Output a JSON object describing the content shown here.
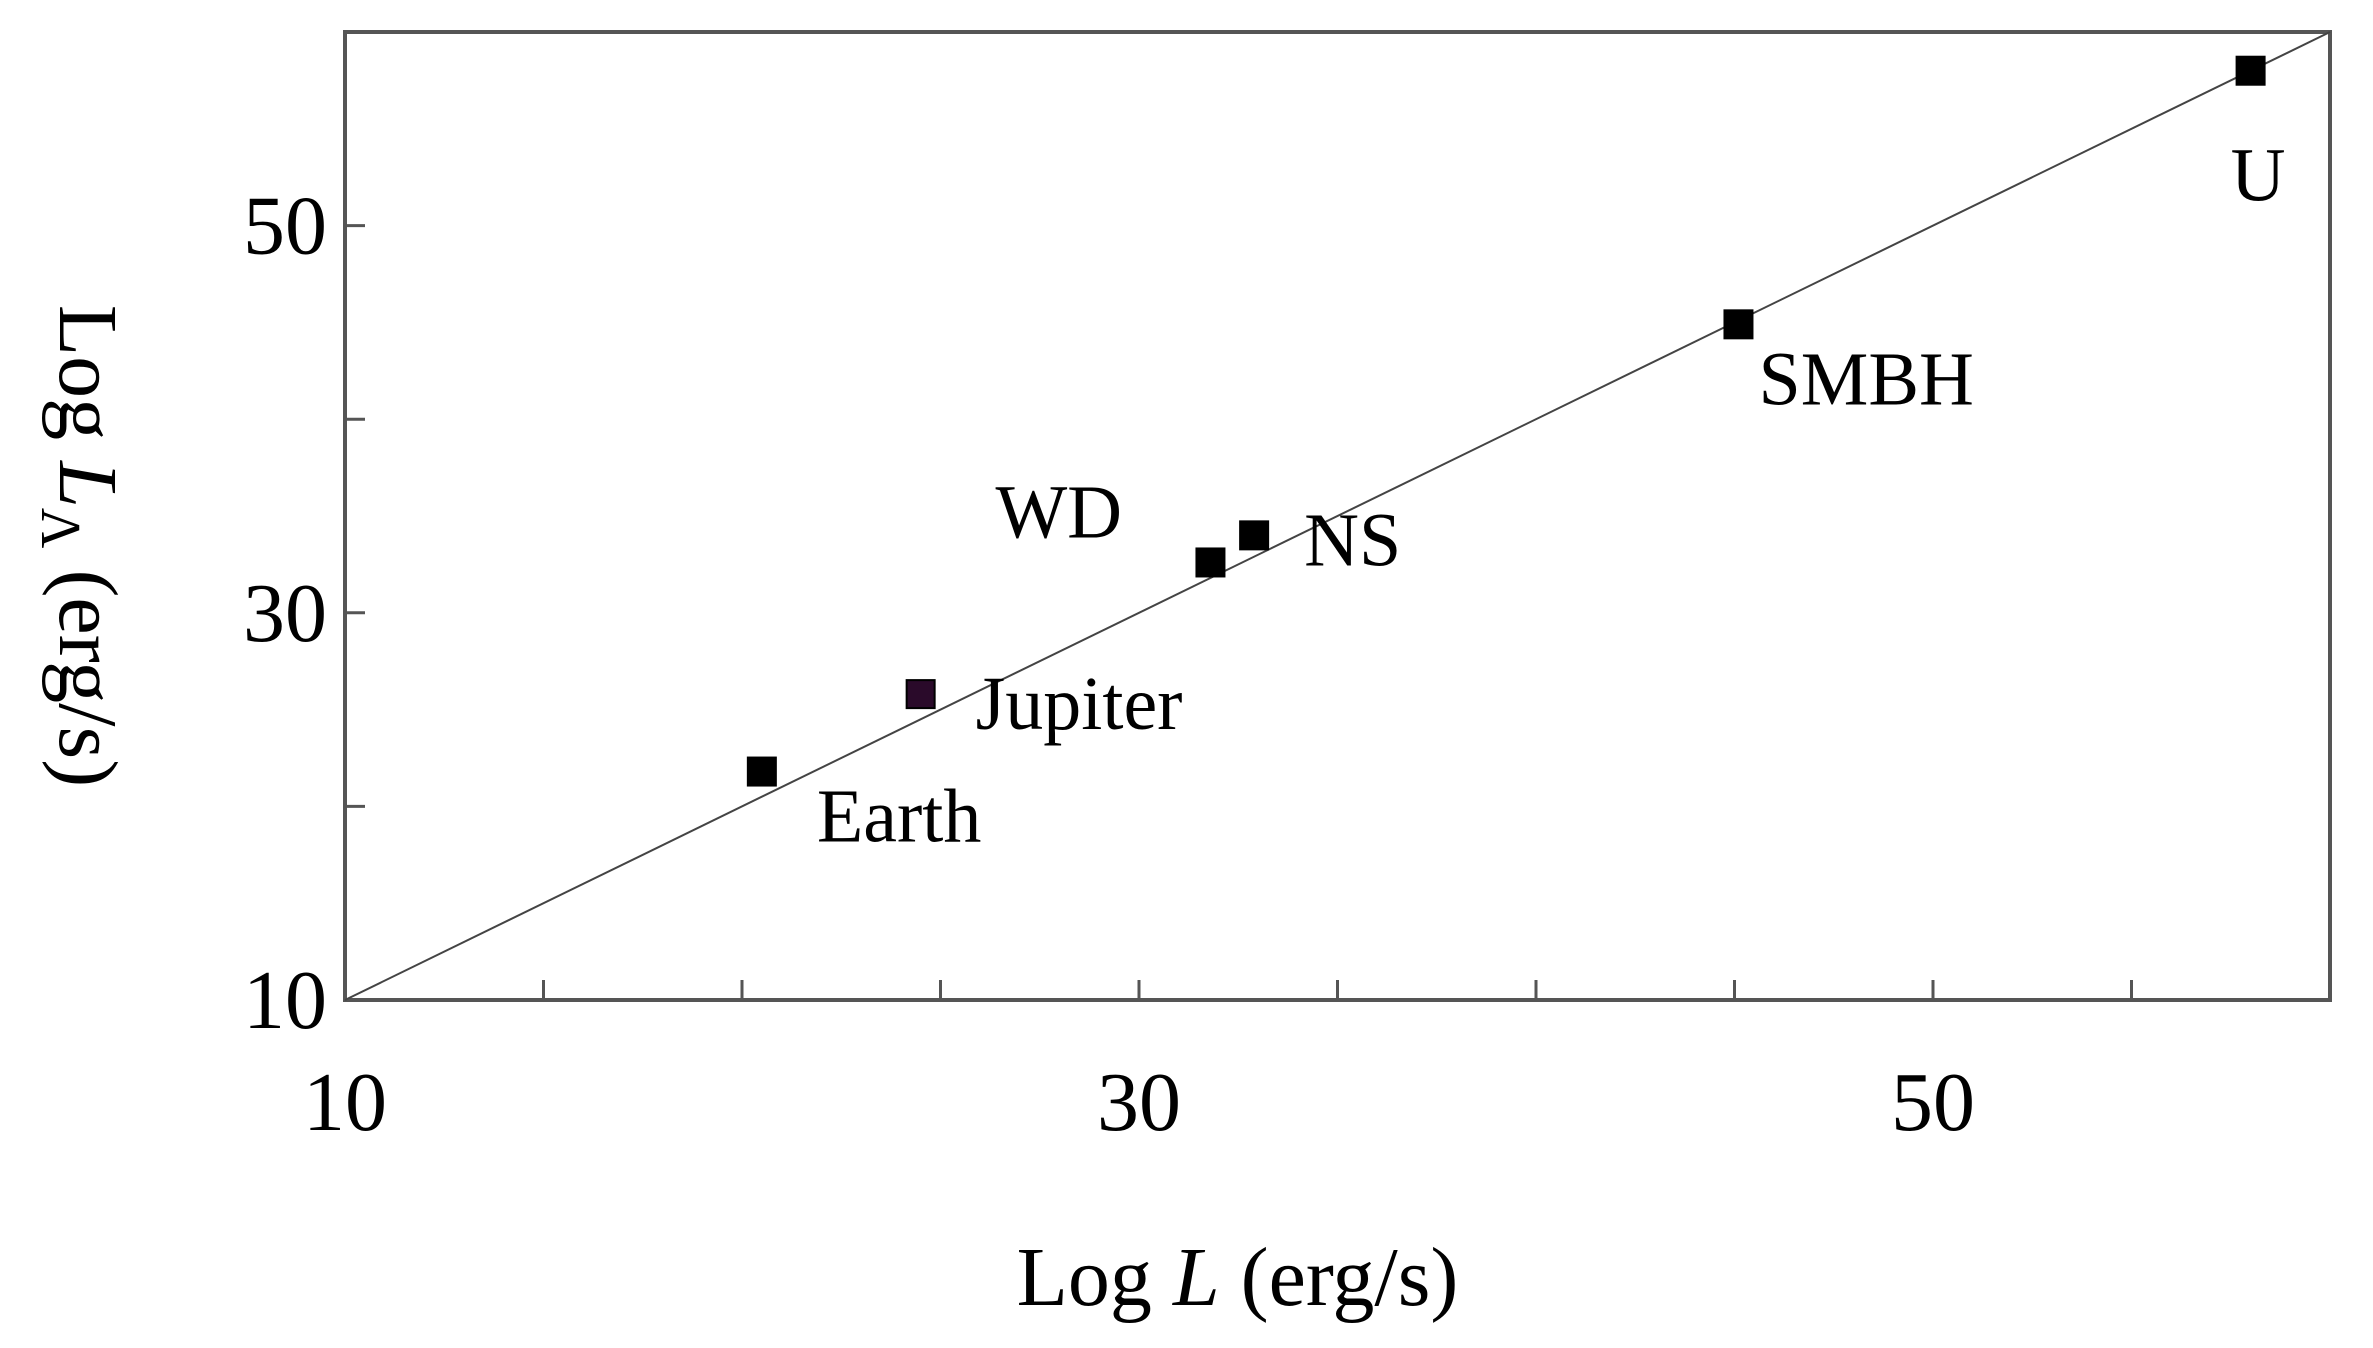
{
  "chart_data": {
    "type": "scatter",
    "title": "",
    "xlabel": {
      "prefix": "Log ",
      "italic": "L",
      "suffix": " (erg/s)"
    },
    "ylabel": {
      "prefix": "Log ",
      "italic": "L",
      "sub": "Λ",
      "suffix": " (erg/s)"
    },
    "xlim": [
      10,
      60
    ],
    "ylim": [
      10,
      60
    ],
    "x_tick_labels": [
      {
        "value": 10,
        "text": "10"
      },
      {
        "value": 30,
        "text": "30"
      },
      {
        "value": 50,
        "text": "50"
      }
    ],
    "y_tick_labels": [
      {
        "value": 10,
        "text": "10"
      },
      {
        "value": 30,
        "text": "30"
      },
      {
        "value": 50,
        "text": "50"
      }
    ],
    "x_minor_ticks": [
      15,
      20,
      25,
      30,
      35,
      40,
      45,
      50,
      55
    ],
    "y_minor_ticks": [
      20,
      30,
      40,
      50
    ],
    "grid": false,
    "reference_line": {
      "from": [
        10,
        10
      ],
      "to": [
        60,
        60
      ]
    },
    "points": [
      {
        "name": "Earth",
        "x": 20.5,
        "y": 21.8,
        "color": "#000000"
      },
      {
        "name": "Jupiter",
        "x": 24.5,
        "y": 25.8,
        "color": "#2a0a2a"
      },
      {
        "name": "WD",
        "x": 31.8,
        "y": 32.6,
        "color": "#000000"
      },
      {
        "name": "NS",
        "x": 32.9,
        "y": 34.0,
        "color": "#000000"
      },
      {
        "name": "SMBH",
        "x": 45.1,
        "y": 44.9,
        "color": "#000000"
      },
      {
        "name": "U",
        "x": 58.0,
        "y": 58.0,
        "color": "#000000"
      }
    ]
  }
}
